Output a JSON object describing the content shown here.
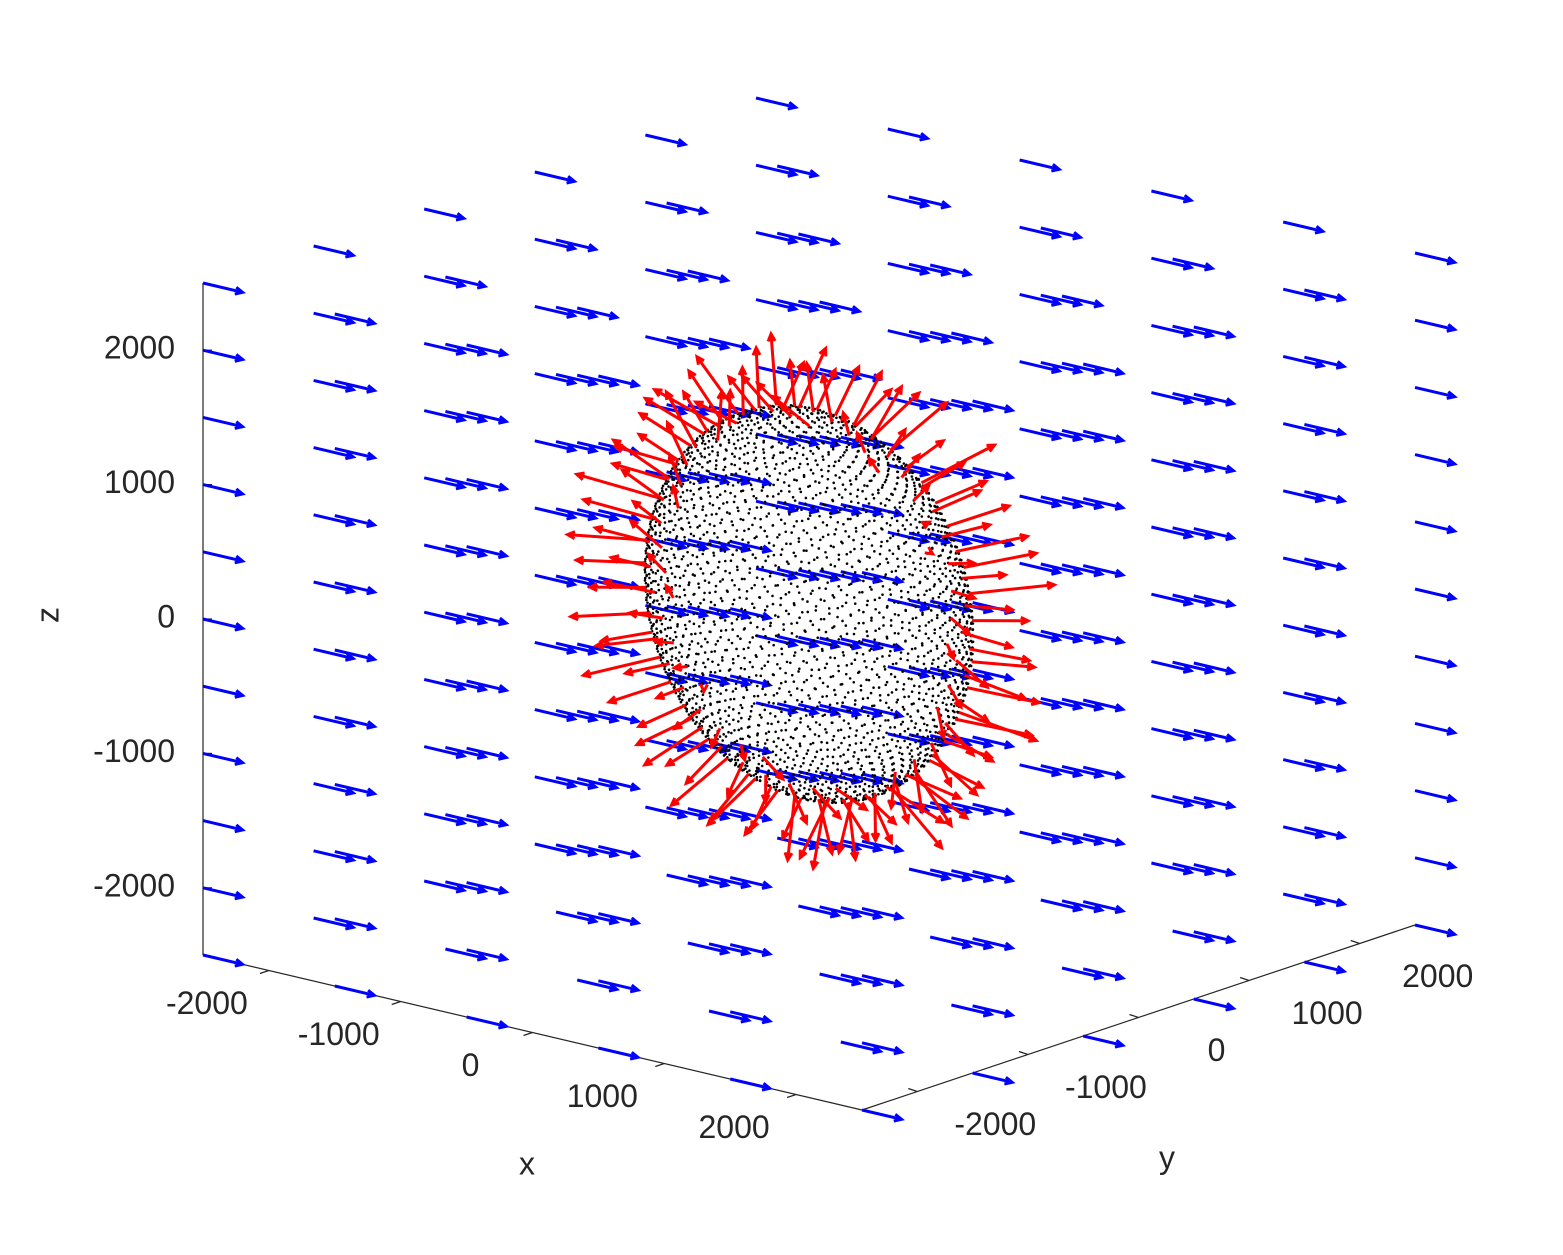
{
  "chart_data": {
    "type": "quiver3",
    "xlabel": "x",
    "ylabel": "y",
    "zlabel": "z",
    "xlim": [
      -2500,
      2500
    ],
    "ylim": [
      -2500,
      2500
    ],
    "zlim": [
      -2500,
      2500
    ],
    "xticks": [
      -2000,
      -1000,
      0,
      1000,
      2000
    ],
    "yticks": [
      -2000,
      -1000,
      0,
      1000,
      2000
    ],
    "zticks": [
      -2000,
      -1000,
      0,
      1000,
      2000
    ],
    "field": {
      "color": "#0000ff",
      "x": [
        -2500,
        -1500,
        -500,
        500,
        1500,
        2500
      ],
      "y": [
        -2500,
        -1500,
        -500,
        500,
        1500,
        2500
      ],
      "z": [
        -2500,
        -2000,
        -1500,
        -1000,
        -500,
        0,
        500,
        1000,
        1500,
        2000,
        2500
      ],
      "u": [
        300,
        0,
        0
      ]
    },
    "surface": {
      "color": "#000000",
      "center": [
        0,
        0,
        0
      ],
      "radii": [
        1200,
        400,
        1450
      ]
    },
    "normals": {
      "color": "#ff0000",
      "length": 500
    }
  }
}
